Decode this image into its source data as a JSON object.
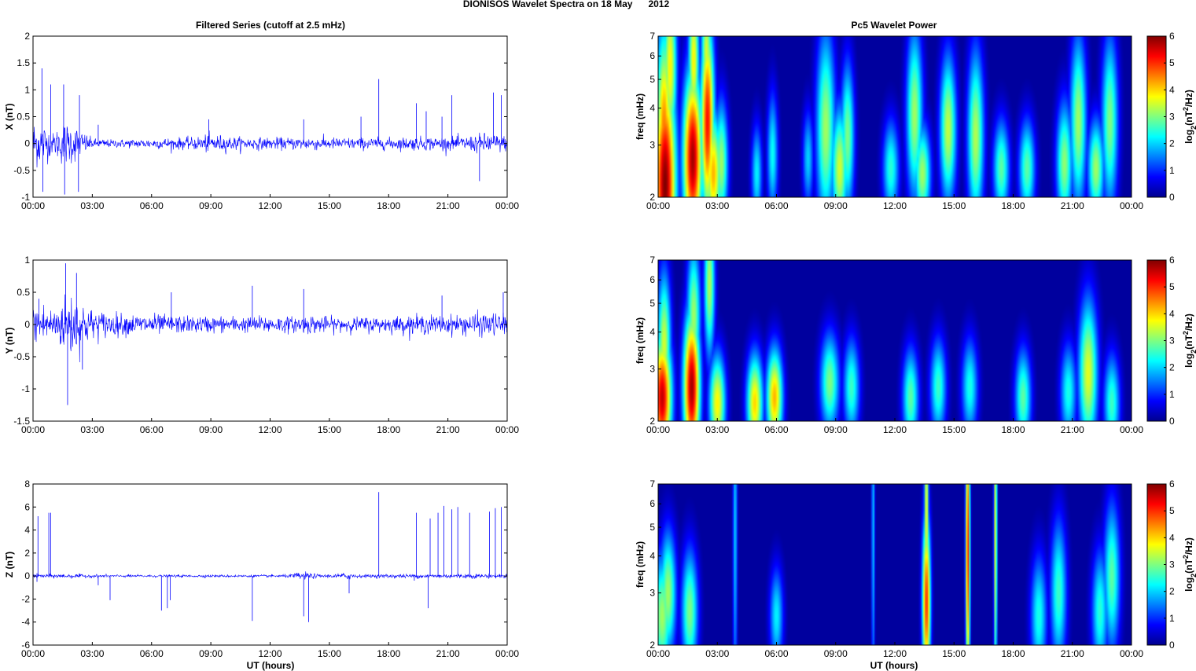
{
  "figure": {
    "suptitle": "DIONISOS Wavelet Spectra on 18 May      2012",
    "left_title": "Filtered Series (cutoff at 2.5 mHz)",
    "right_title": "Pc5 Wavelet Power",
    "x_label": "UT (hours)"
  },
  "chart_data": [
    {
      "type": "line",
      "component": "X",
      "ylabel": "X (nT)",
      "xticks": [
        "00:00",
        "03:00",
        "06:00",
        "09:00",
        "12:00",
        "15:00",
        "18:00",
        "21:00",
        "00:00"
      ],
      "yticks": [
        "2",
        "1.5",
        "1",
        "0.5",
        "0",
        "-0.5",
        "-1"
      ],
      "ylim": [
        -1,
        2
      ],
      "xlim_hours": [
        0,
        24
      ],
      "series": [
        {
          "color": "#0000ff",
          "envelope_hours": [
            0,
            0.5,
            1,
            1.5,
            2,
            2.5,
            3,
            4,
            5,
            6,
            7,
            8,
            9,
            10,
            11,
            12,
            13,
            14,
            15,
            16,
            17,
            18,
            19,
            20,
            21,
            22,
            23,
            24
          ],
          "envelope_amplitude": [
            0.5,
            0.45,
            0.2,
            0.45,
            0.4,
            0.25,
            0.1,
            0.08,
            0.09,
            0.1,
            0.12,
            0.12,
            0.2,
            0.14,
            0.12,
            0.12,
            0.12,
            0.14,
            0.12,
            0.12,
            0.12,
            0.12,
            0.13,
            0.14,
            0.13,
            0.15,
            0.22,
            0.15
          ],
          "spikes": [
            [
              0.45,
              1.4
            ],
            [
              0.5,
              -0.9
            ],
            [
              0.9,
              1.1
            ],
            [
              1.55,
              1.1
            ],
            [
              1.6,
              -0.95
            ],
            [
              2.3,
              -0.9
            ],
            [
              2.35,
              0.9
            ],
            [
              3.3,
              0.35
            ],
            [
              8.9,
              0.45
            ],
            [
              13.7,
              0.45
            ],
            [
              16.6,
              0.5
            ],
            [
              17.5,
              1.2
            ],
            [
              19.4,
              0.75
            ],
            [
              19.9,
              0.6
            ],
            [
              20.7,
              0.5
            ],
            [
              21.2,
              0.9
            ],
            [
              22.6,
              -0.7
            ],
            [
              23.3,
              0.95
            ],
            [
              23.7,
              0.9
            ]
          ]
        }
      ]
    },
    {
      "type": "line",
      "component": "Y",
      "ylabel": "Y (nT)",
      "xticks": [
        "00:00",
        "03:00",
        "06:00",
        "09:00",
        "12:00",
        "15:00",
        "18:00",
        "21:00",
        "00:00"
      ],
      "yticks": [
        "1",
        "0.5",
        "0",
        "-0.5",
        "-1",
        "-1.5"
      ],
      "ylim": [
        -1.5,
        1
      ],
      "xlim_hours": [
        0,
        24
      ],
      "series": [
        {
          "color": "#0000ff",
          "envelope_hours": [
            0,
            0.5,
            1,
            1.5,
            2,
            2.5,
            3,
            4,
            5,
            6,
            7,
            8,
            9,
            10,
            11,
            12,
            13,
            14,
            15,
            16,
            17,
            18,
            19,
            20,
            21,
            22,
            23,
            24
          ],
          "envelope_amplitude": [
            0.3,
            0.4,
            0.25,
            0.45,
            0.6,
            0.4,
            0.25,
            0.2,
            0.17,
            0.18,
            0.15,
            0.14,
            0.14,
            0.14,
            0.13,
            0.15,
            0.13,
            0.16,
            0.13,
            0.12,
            0.13,
            0.13,
            0.15,
            0.16,
            0.15,
            0.18,
            0.2,
            0.18
          ],
          "spikes": [
            [
              0.3,
              0.4
            ],
            [
              1.65,
              0.95
            ],
            [
              1.75,
              -1.25
            ],
            [
              2.2,
              0.8
            ],
            [
              2.5,
              -0.7
            ],
            [
              7,
              0.5
            ],
            [
              11.1,
              0.6
            ],
            [
              13.7,
              0.55
            ],
            [
              20.7,
              0.45
            ],
            [
              23.8,
              0.5
            ]
          ]
        }
      ]
    },
    {
      "type": "line",
      "component": "Z",
      "ylabel": "Z (nT)",
      "xticks": [
        "00:00",
        "03:00",
        "06:00",
        "09:00",
        "12:00",
        "15:00",
        "18:00",
        "21:00",
        "00:00"
      ],
      "yticks": [
        "8",
        "6",
        "4",
        "2",
        "0",
        "-2",
        "-4",
        "-6"
      ],
      "ylim": [
        -6,
        8
      ],
      "xlim_hours": [
        0,
        24
      ],
      "series": [
        {
          "color": "#0000ff",
          "envelope_hours": [
            0,
            1,
            2,
            3,
            4,
            5,
            6,
            7,
            8,
            9,
            10,
            11,
            12,
            13,
            13.5,
            14,
            14.5,
            15,
            16,
            16.5,
            17,
            18,
            19,
            20,
            21,
            22,
            23,
            24
          ],
          "envelope_amplitude": [
            0.2,
            0.2,
            0.2,
            0.15,
            0.12,
            0.12,
            0.12,
            0.12,
            0.12,
            0.12,
            0.12,
            0.12,
            0.12,
            0.15,
            0.4,
            0.3,
            0.15,
            0.15,
            0.35,
            0.15,
            0.15,
            0.2,
            0.2,
            0.2,
            0.22,
            0.22,
            0.22,
            0.2
          ],
          "spikes": [
            [
              0.2,
              -0.5
            ],
            [
              0.25,
              5.2
            ],
            [
              0.8,
              5.5
            ],
            [
              0.9,
              5.5
            ],
            [
              3.3,
              -0.8
            ],
            [
              3.9,
              -2.1
            ],
            [
              6.5,
              -3.0
            ],
            [
              6.8,
              -2.8
            ],
            [
              6.95,
              -2.1
            ],
            [
              11.1,
              -3.9
            ],
            [
              13.7,
              -3.5
            ],
            [
              13.95,
              -4.0
            ],
            [
              16.0,
              -1.5
            ],
            [
              17.5,
              7.3
            ],
            [
              19.3,
              -0.4
            ],
            [
              19.4,
              5.5
            ],
            [
              20.0,
              -2.8
            ],
            [
              20.1,
              5.0
            ],
            [
              20.5,
              5.5
            ],
            [
              20.8,
              6.1
            ],
            [
              21.2,
              5.8
            ],
            [
              21.5,
              6.0
            ],
            [
              22.1,
              5.5
            ],
            [
              23.1,
              5.6
            ],
            [
              23.4,
              5.9
            ],
            [
              23.7,
              6.0
            ]
          ]
        }
      ]
    },
    {
      "type": "heatmap",
      "component": "X",
      "ylabel": "freq (mHz)",
      "xticks": [
        "00:00",
        "03:00",
        "06:00",
        "09:00",
        "12:00",
        "15:00",
        "18:00",
        "21:00",
        "00:00"
      ],
      "yticks": [
        "7",
        "6",
        "5",
        "4",
        "3",
        "2"
      ],
      "ylim_mHz": [
        2,
        7
      ],
      "y_scale": "log",
      "colorbar_label": "log2(nT2/Hz)",
      "colorbar_ticks": [
        "6",
        "5",
        "4",
        "3",
        "2",
        "1",
        "0"
      ],
      "clim": [
        0,
        6
      ],
      "blobs": [
        {
          "t": 0.35,
          "f": 2.2,
          "peak": 6.0,
          "dt": 0.4,
          "df_oct": 0.9
        },
        {
          "t": 0.3,
          "f": 3.2,
          "peak": 4.6,
          "dt": 0.3,
          "df_oct": 0.9
        },
        {
          "t": 0.6,
          "f": 5.5,
          "peak": 3.8,
          "dt": 0.25,
          "df_oct": 0.7
        },
        {
          "t": 1.75,
          "f": 2.7,
          "peak": 5.8,
          "dt": 0.35,
          "df_oct": 0.7
        },
        {
          "t": 1.8,
          "f": 5.8,
          "peak": 3.8,
          "dt": 0.2,
          "df_oct": 0.6
        },
        {
          "t": 2.5,
          "f": 3.6,
          "peak": 5.2,
          "dt": 0.25,
          "df_oct": 0.8
        },
        {
          "t": 2.8,
          "f": 2.4,
          "peak": 4.2,
          "dt": 0.3,
          "df_oct": 0.5
        },
        {
          "t": 2.45,
          "f": 6.2,
          "peak": 3.5,
          "dt": 0.2,
          "df_oct": 0.5
        },
        {
          "t": 3.2,
          "f": 2.6,
          "peak": 3.2,
          "dt": 0.25,
          "df_oct": 0.5
        },
        {
          "t": 5.0,
          "f": 2.4,
          "peak": 2.2,
          "dt": 0.2,
          "df_oct": 0.4
        },
        {
          "t": 5.8,
          "f": 2.8,
          "peak": 2.3,
          "dt": 0.2,
          "df_oct": 0.5
        },
        {
          "t": 7.6,
          "f": 2.7,
          "peak": 2.0,
          "dt": 0.2,
          "df_oct": 0.4
        },
        {
          "t": 8.5,
          "f": 3.4,
          "peak": 3.2,
          "dt": 0.35,
          "df_oct": 0.8
        },
        {
          "t": 9.2,
          "f": 2.5,
          "peak": 3.5,
          "dt": 0.3,
          "df_oct": 0.5
        },
        {
          "t": 9.6,
          "f": 3.2,
          "peak": 3.0,
          "dt": 0.25,
          "df_oct": 0.6
        },
        {
          "t": 11.8,
          "f": 2.5,
          "peak": 2.5,
          "dt": 0.3,
          "df_oct": 0.4
        },
        {
          "t": 13.0,
          "f": 3.8,
          "peak": 3.2,
          "dt": 0.3,
          "df_oct": 0.7
        },
        {
          "t": 13.4,
          "f": 2.4,
          "peak": 3.2,
          "dt": 0.3,
          "df_oct": 0.4
        },
        {
          "t": 14.7,
          "f": 3.4,
          "peak": 3.4,
          "dt": 0.3,
          "df_oct": 0.6
        },
        {
          "t": 16.1,
          "f": 3.2,
          "peak": 3.3,
          "dt": 0.3,
          "df_oct": 0.7
        },
        {
          "t": 17.4,
          "f": 2.5,
          "peak": 2.8,
          "dt": 0.3,
          "df_oct": 0.4
        },
        {
          "t": 18.7,
          "f": 2.5,
          "peak": 2.8,
          "dt": 0.3,
          "df_oct": 0.4
        },
        {
          "t": 20.6,
          "f": 2.6,
          "peak": 3.1,
          "dt": 0.3,
          "df_oct": 0.5
        },
        {
          "t": 21.3,
          "f": 3.6,
          "peak": 3.2,
          "dt": 0.3,
          "df_oct": 0.7
        },
        {
          "t": 22.2,
          "f": 2.5,
          "peak": 3.2,
          "dt": 0.3,
          "df_oct": 0.4
        },
        {
          "t": 22.9,
          "f": 3.6,
          "peak": 3.0,
          "dt": 0.3,
          "df_oct": 0.7
        }
      ]
    },
    {
      "type": "heatmap",
      "component": "Y",
      "ylabel": "freq (mHz)",
      "xticks": [
        "00:00",
        "03:00",
        "06:00",
        "09:00",
        "12:00",
        "15:00",
        "18:00",
        "21:00",
        "00:00"
      ],
      "yticks": [
        "7",
        "6",
        "5",
        "4",
        "3",
        "2"
      ],
      "ylim_mHz": [
        2,
        7
      ],
      "y_scale": "log",
      "colorbar_label": "log2(nT2/Hz)",
      "colorbar_ticks": [
        "6",
        "5",
        "4",
        "3",
        "2",
        "1",
        "0"
      ],
      "clim": [
        0,
        6
      ],
      "blobs": [
        {
          "t": 0.2,
          "f": 2.4,
          "peak": 5.6,
          "dt": 0.35,
          "df_oct": 0.5
        },
        {
          "t": 0.3,
          "f": 3.6,
          "peak": 3.5,
          "dt": 0.25,
          "df_oct": 0.6
        },
        {
          "t": 1.7,
          "f": 2.6,
          "peak": 5.8,
          "dt": 0.3,
          "df_oct": 0.6
        },
        {
          "t": 1.8,
          "f": 4.5,
          "peak": 3.2,
          "dt": 0.25,
          "df_oct": 0.6
        },
        {
          "t": 2.6,
          "f": 5.8,
          "peak": 3.3,
          "dt": 0.2,
          "df_oct": 0.6
        },
        {
          "t": 3.0,
          "f": 2.3,
          "peak": 3.8,
          "dt": 0.3,
          "df_oct": 0.4
        },
        {
          "t": 4.9,
          "f": 2.3,
          "peak": 4.0,
          "dt": 0.3,
          "df_oct": 0.4
        },
        {
          "t": 5.9,
          "f": 2.4,
          "peak": 4.2,
          "dt": 0.3,
          "df_oct": 0.4
        },
        {
          "t": 8.7,
          "f": 2.7,
          "peak": 3.0,
          "dt": 0.35,
          "df_oct": 0.4
        },
        {
          "t": 9.8,
          "f": 2.6,
          "peak": 2.6,
          "dt": 0.3,
          "df_oct": 0.4
        },
        {
          "t": 12.8,
          "f": 2.4,
          "peak": 2.8,
          "dt": 0.3,
          "df_oct": 0.4
        },
        {
          "t": 14.2,
          "f": 2.6,
          "peak": 2.6,
          "dt": 0.3,
          "df_oct": 0.4
        },
        {
          "t": 15.8,
          "f": 2.6,
          "peak": 2.4,
          "dt": 0.3,
          "df_oct": 0.4
        },
        {
          "t": 18.5,
          "f": 2.4,
          "peak": 2.8,
          "dt": 0.3,
          "df_oct": 0.4
        },
        {
          "t": 20.8,
          "f": 2.5,
          "peak": 2.4,
          "dt": 0.3,
          "df_oct": 0.4
        },
        {
          "t": 21.8,
          "f": 2.9,
          "peak": 3.6,
          "dt": 0.35,
          "df_oct": 0.6
        },
        {
          "t": 23.0,
          "f": 2.3,
          "peak": 2.6,
          "dt": 0.3,
          "df_oct": 0.4
        }
      ]
    },
    {
      "type": "heatmap",
      "component": "Z",
      "ylabel": "freq (mHz)",
      "xticks": [
        "00:00",
        "03:00",
        "06:00",
        "09:00",
        "12:00",
        "15:00",
        "18:00",
        "21:00",
        "00:00"
      ],
      "yticks": [
        "7",
        "6",
        "5",
        "4",
        "3",
        "2"
      ],
      "ylim_mHz": [
        2,
        7
      ],
      "y_scale": "log",
      "colorbar_label": "log2(nT2/Hz)",
      "colorbar_ticks": [
        "6",
        "5",
        "4",
        "3",
        "2",
        "1",
        "0"
      ],
      "clim": [
        0,
        6
      ],
      "blobs": [
        {
          "t": 0.2,
          "f": 2.5,
          "peak": 3.2,
          "dt": 0.35,
          "df_oct": 0.5
        },
        {
          "t": 0.5,
          "f": 3.0,
          "peak": 3.2,
          "dt": 0.3,
          "df_oct": 0.5
        },
        {
          "t": 1.6,
          "f": 2.6,
          "peak": 3.0,
          "dt": 0.3,
          "df_oct": 0.5
        },
        {
          "t": 3.9,
          "f": 5.0,
          "peak": 2.0,
          "dt": 0.08,
          "df_oct": 1.6
        },
        {
          "t": 6.0,
          "f": 2.5,
          "peak": 2.2,
          "dt": 0.25,
          "df_oct": 0.4
        },
        {
          "t": 10.9,
          "f": 5.0,
          "peak": 2.0,
          "dt": 0.06,
          "df_oct": 1.6
        },
        {
          "t": 13.6,
          "f": 2.8,
          "peak": 5.0,
          "dt": 0.15,
          "df_oct": 0.7
        },
        {
          "t": 13.6,
          "f": 5.5,
          "peak": 3.8,
          "dt": 0.08,
          "df_oct": 1.0
        },
        {
          "t": 15.7,
          "f": 4.2,
          "peak": 5.2,
          "dt": 0.08,
          "df_oct": 1.2
        },
        {
          "t": 17.1,
          "f": 4.8,
          "peak": 3.8,
          "dt": 0.06,
          "df_oct": 1.4
        },
        {
          "t": 19.3,
          "f": 2.5,
          "peak": 2.4,
          "dt": 0.3,
          "df_oct": 0.5
        },
        {
          "t": 20.3,
          "f": 3.0,
          "peak": 2.6,
          "dt": 0.3,
          "df_oct": 0.6
        },
        {
          "t": 22.4,
          "f": 2.6,
          "peak": 2.5,
          "dt": 0.3,
          "df_oct": 0.5
        },
        {
          "t": 23.0,
          "f": 3.4,
          "peak": 2.8,
          "dt": 0.3,
          "df_oct": 0.6
        }
      ]
    }
  ]
}
